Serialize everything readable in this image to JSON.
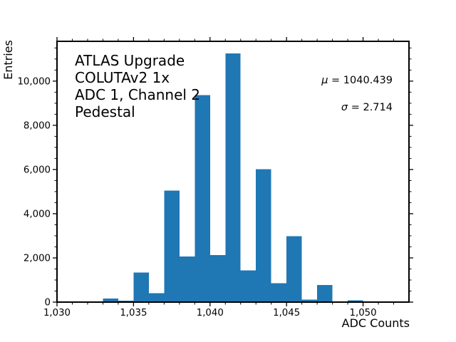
{
  "chart_data": {
    "type": "bar",
    "subtype": "histogram",
    "title": "",
    "xlabel": "ADC Counts",
    "ylabel": "Entries",
    "bar_color": "#1f77b4",
    "background_color": "#ffffff",
    "grid": false,
    "legend": null,
    "xlim": [
      1030,
      1053
    ],
    "ylim": [
      0,
      11800
    ],
    "bin_width": 1,
    "bins": [
      {
        "x": 1033,
        "count": 160
      },
      {
        "x": 1034,
        "count": 60
      },
      {
        "x": 1035,
        "count": 1330
      },
      {
        "x": 1036,
        "count": 400
      },
      {
        "x": 1037,
        "count": 5050
      },
      {
        "x": 1038,
        "count": 2060
      },
      {
        "x": 1039,
        "count": 9370
      },
      {
        "x": 1040,
        "count": 2130
      },
      {
        "x": 1041,
        "count": 11250
      },
      {
        "x": 1042,
        "count": 1440
      },
      {
        "x": 1043,
        "count": 6020
      },
      {
        "x": 1044,
        "count": 855
      },
      {
        "x": 1045,
        "count": 2980
      },
      {
        "x": 1046,
        "count": 120
      },
      {
        "x": 1047,
        "count": 770
      },
      {
        "x": 1049,
        "count": 80
      }
    ],
    "x_axis": {
      "major_ticks": [
        {
          "value": 1030,
          "label": "1,030"
        },
        {
          "value": 1035,
          "label": "1,035"
        },
        {
          "value": 1040,
          "label": "1,040"
        },
        {
          "value": 1045,
          "label": "1,045"
        },
        {
          "value": 1050,
          "label": "1,050"
        }
      ],
      "minor_step": 1
    },
    "y_axis": {
      "major_ticks": [
        {
          "value": 0,
          "label": "0"
        },
        {
          "value": 2000,
          "label": "2,000"
        },
        {
          "value": 4000,
          "label": "4,000"
        },
        {
          "value": 6000,
          "label": "6,000"
        },
        {
          "value": 8000,
          "label": "8,000"
        },
        {
          "value": 10000,
          "label": "10,000"
        }
      ],
      "minor_step": 500
    },
    "annotation": {
      "lines": [
        "ATLAS Upgrade",
        "COLUTAv2 1x",
        "ADC 1, Channel 2",
        "Pedestal"
      ]
    },
    "stats": {
      "mu": 1040.439,
      "sigma": 2.714,
      "mu_symbol": "μ",
      "mu_rest": " = 1040.439",
      "sigma_symbol": "σ",
      "sigma_rest": " = 2.714"
    }
  }
}
